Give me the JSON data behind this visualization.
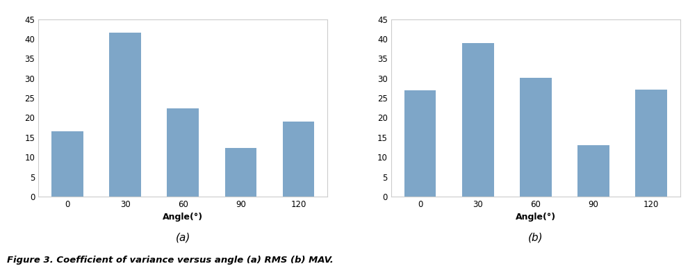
{
  "categories": [
    "0",
    "30",
    "60",
    "90",
    "120"
  ],
  "values_a": [
    16.5,
    41.5,
    22.3,
    12.3,
    19.0
  ],
  "values_b": [
    26.9,
    39.0,
    30.2,
    13.1,
    27.1
  ],
  "bar_color": "#7EA6C8",
  "xlabel": "Angle(°)",
  "label_a": "(a)",
  "label_b": "(b)",
  "ylim": [
    0,
    45
  ],
  "yticks": [
    0,
    5,
    10,
    15,
    20,
    25,
    30,
    35,
    40,
    45
  ],
  "caption": "Figure 3. Coefficient of variance versus angle (a) RMS (b) MAV.",
  "background_color": "#ffffff",
  "bar_width": 0.55,
  "xlabel_fontsize": 9,
  "tick_fontsize": 8.5,
  "caption_fontsize": 9.5,
  "box_color": "#cccccc",
  "label_fontsize": 11
}
